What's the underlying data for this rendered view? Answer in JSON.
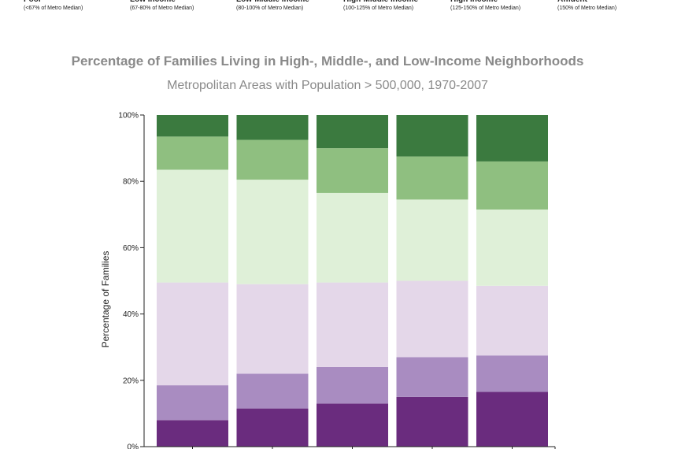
{
  "legend": [
    {
      "name": "Poor",
      "range": "(<67% of Metro Median)"
    },
    {
      "name": "Low Income",
      "range": "(67-80% of Metro Median)"
    },
    {
      "name": "Low-Middle Income",
      "range": "(80-100% of Metro Median)"
    },
    {
      "name": "High-Middle Income",
      "range": "(100-125% of Metro Median)"
    },
    {
      "name": "High Income",
      "range": "(125-150% of Metro Median)"
    },
    {
      "name": "Affluent",
      "range": "(150% of Metro Median)"
    }
  ],
  "chart_data": {
    "type": "bar",
    "stacked": true,
    "title": "Percentage of Families Living in High-, Middle-, and Low-Income Neighborhoods",
    "subtitle": "Metropolitan Areas with Population > 500,000, 1970-2007",
    "ylabel": "Percentage of Families",
    "xlabel": "",
    "ylim": [
      0,
      100
    ],
    "yticks": [
      "0%",
      "20%",
      "40%",
      "60%",
      "80%",
      "100%"
    ],
    "categories": [
      "",
      "",
      "",
      "",
      ""
    ],
    "series": [
      {
        "name": "Poor",
        "color": "#6a2c7e",
        "values": [
          8,
          11.5,
          13,
          15,
          16.5
        ]
      },
      {
        "name": "Low Income",
        "color": "#a98cc1",
        "values": [
          10.5,
          10.5,
          11,
          12,
          11
        ]
      },
      {
        "name": "Low-Middle Income",
        "color": "#e4d7e9",
        "values": [
          31,
          27,
          25.5,
          23,
          21
        ]
      },
      {
        "name": "High-Middle Income",
        "color": "#dff0d8",
        "values": [
          34,
          31.5,
          27,
          24.5,
          23
        ]
      },
      {
        "name": "High Income",
        "color": "#8fbf80",
        "values": [
          10,
          12,
          13.5,
          13,
          14.5
        ]
      },
      {
        "name": "Affluent",
        "color": "#3b7a3f",
        "values": [
          6.5,
          7.5,
          10,
          12.5,
          14
        ]
      }
    ]
  }
}
